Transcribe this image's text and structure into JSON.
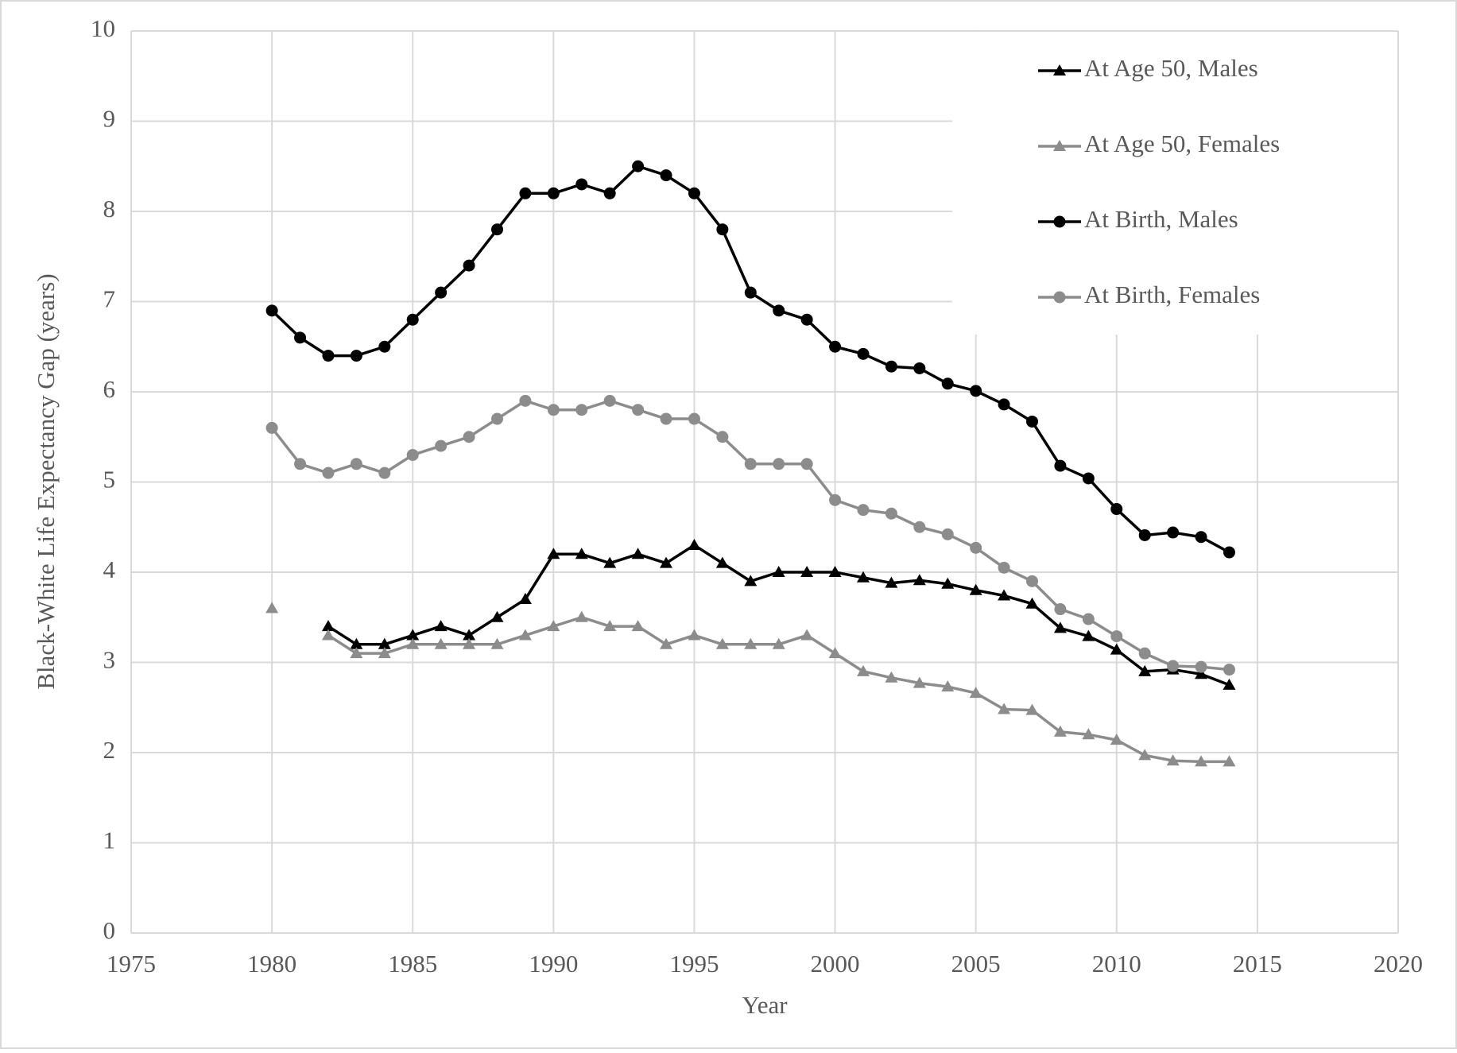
{
  "chart_data": {
    "type": "line",
    "y_label": "Black-White Life Expectancy Gap (years)",
    "x_label": "Year",
    "x": [
      1980,
      1981,
      1982,
      1983,
      1984,
      1985,
      1986,
      1987,
      1988,
      1989,
      1990,
      1991,
      1992,
      1993,
      1994,
      1995,
      1996,
      1997,
      1998,
      1999,
      2000,
      2001,
      2002,
      2003,
      2004,
      2005,
      2006,
      2007,
      2008,
      2009,
      2010,
      2011,
      2012,
      2013,
      2014
    ],
    "series": [
      {
        "name": "At Age 50, Males",
        "color": "#000000",
        "marker": "triangle",
        "values": [
          null,
          null,
          3.4,
          3.2,
          3.2,
          3.3,
          3.4,
          3.3,
          3.5,
          3.7,
          4.2,
          4.2,
          4.1,
          4.2,
          4.1,
          4.3,
          4.1,
          3.9,
          4.0,
          4.0,
          4.0,
          3.94,
          3.88,
          3.91,
          3.87,
          3.8,
          3.74,
          3.65,
          3.38,
          3.29,
          3.14,
          2.9,
          2.92,
          2.87,
          2.75
        ]
      },
      {
        "name": "At Age 50, Females",
        "color": "#8c8c8c",
        "marker": "triangle",
        "values": [
          3.6,
          null,
          3.3,
          3.1,
          3.1,
          3.2,
          3.2,
          3.2,
          3.2,
          3.3,
          3.4,
          3.5,
          3.4,
          3.4,
          3.2,
          3.3,
          3.2,
          3.2,
          3.2,
          3.3,
          3.1,
          2.9,
          2.83,
          2.77,
          2.73,
          2.66,
          2.48,
          2.47,
          2.23,
          2.2,
          2.14,
          1.97,
          1.91,
          1.9,
          1.9
        ]
      },
      {
        "name": "At Birth, Males",
        "color": "#000000",
        "marker": "circle",
        "values": [
          6.9,
          6.6,
          6.4,
          6.4,
          6.5,
          6.8,
          7.1,
          7.4,
          7.8,
          8.2,
          8.2,
          8.3,
          8.2,
          8.5,
          8.4,
          8.2,
          7.8,
          7.1,
          6.9,
          6.8,
          6.5,
          6.42,
          6.28,
          6.26,
          6.09,
          6.01,
          5.86,
          5.67,
          5.18,
          5.04,
          4.7,
          4.41,
          4.44,
          4.39,
          4.22
        ]
      },
      {
        "name": "At Birth, Females",
        "color": "#8c8c8c",
        "marker": "circle",
        "values": [
          5.6,
          5.2,
          5.1,
          5.2,
          5.1,
          5.3,
          5.4,
          5.5,
          5.7,
          5.9,
          5.8,
          5.8,
          5.9,
          5.8,
          5.7,
          5.7,
          5.5,
          5.2,
          5.2,
          5.2,
          4.8,
          4.69,
          4.65,
          4.5,
          4.42,
          4.27,
          4.05,
          3.9,
          3.59,
          3.48,
          3.29,
          3.1,
          2.96,
          2.95,
          2.92
        ]
      }
    ],
    "xlim": [
      1975,
      2020
    ],
    "xticks": [
      1975,
      1980,
      1985,
      1990,
      1995,
      2000,
      2005,
      2010,
      2015,
      2020
    ],
    "ylim": [
      0,
      10
    ],
    "yticks": [
      0,
      1,
      2,
      3,
      4,
      5,
      6,
      7,
      8,
      9,
      10
    ],
    "grid": true,
    "legend": "top-right"
  }
}
